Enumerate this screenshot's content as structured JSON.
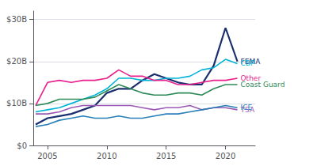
{
  "chart_data": {
    "type": "line",
    "x": [
      2004,
      2005,
      2006,
      2007,
      2008,
      2009,
      2010,
      2011,
      2012,
      2013,
      2014,
      2015,
      2016,
      2017,
      2018,
      2019,
      2020,
      2021
    ],
    "series": [
      {
        "name": "FEMA",
        "color": "#1a2f6e",
        "values": [
          5.0,
          6.5,
          7.0,
          7.5,
          8.5,
          9.5,
          12.5,
          13.5,
          13.5,
          15.5,
          17.0,
          16.0,
          15.0,
          14.5,
          14.5,
          19.0,
          28.0,
          20.0
        ]
      },
      {
        "name": "CBP",
        "color": "#00b4d8",
        "values": [
          8.0,
          8.5,
          9.0,
          10.0,
          11.0,
          12.0,
          13.5,
          16.0,
          16.0,
          15.5,
          15.5,
          16.0,
          16.0,
          16.5,
          18.0,
          18.5,
          20.5,
          19.5
        ]
      },
      {
        "name": "Other",
        "color": "#e91e8c",
        "values": [
          9.5,
          15.0,
          15.5,
          15.0,
          15.5,
          15.5,
          16.0,
          18.0,
          16.5,
          16.5,
          15.5,
          15.5,
          14.5,
          14.5,
          15.0,
          15.5,
          15.5,
          16.0
        ]
      },
      {
        "name": "Coast Guard",
        "color": "#2e8b57",
        "values": [
          9.5,
          10.0,
          11.0,
          11.0,
          11.0,
          11.5,
          13.0,
          14.5,
          13.5,
          12.5,
          12.0,
          12.0,
          12.5,
          12.5,
          12.0,
          13.5,
          14.5,
          14.5
        ]
      },
      {
        "name": "TSA",
        "color": "#9b59b6",
        "values": [
          7.5,
          7.5,
          8.0,
          9.0,
          9.5,
          9.5,
          9.5,
          9.5,
          9.5,
          9.0,
          8.5,
          9.0,
          9.0,
          9.5,
          8.5,
          9.0,
          9.0,
          8.5
        ]
      },
      {
        "name": "ICE",
        "color": "#2980b9",
        "values": [
          4.5,
          5.0,
          6.0,
          6.5,
          7.0,
          6.5,
          6.5,
          7.0,
          6.5,
          6.5,
          7.0,
          7.5,
          7.5,
          8.0,
          8.5,
          9.0,
          9.5,
          9.0
        ]
      }
    ],
    "xlim": [
      2003.8,
      2022.5
    ],
    "xticks": [
      2005,
      2010,
      2015,
      2020
    ],
    "ylim": [
      0,
      32
    ],
    "yticks": [
      {
        "value": 0,
        "label": "$0"
      },
      {
        "value": 10,
        "label": "$10B"
      },
      {
        "value": 20,
        "label": "$20B"
      },
      {
        "value": 30,
        "label": "$30B"
      }
    ],
    "grid": true
  }
}
